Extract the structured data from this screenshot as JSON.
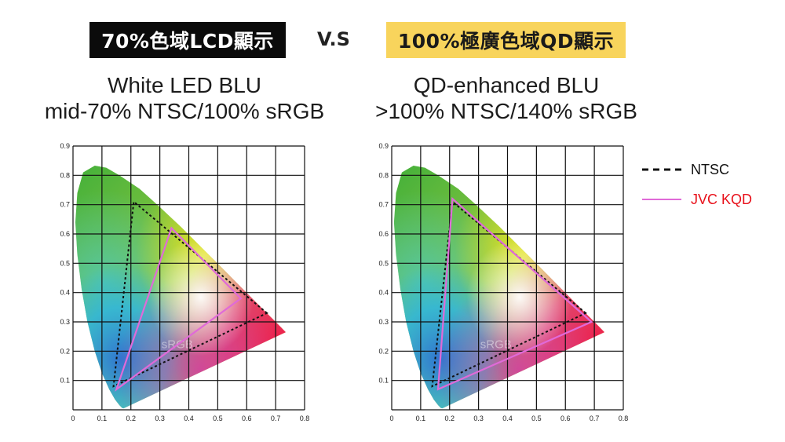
{
  "header": {
    "left_badge": "70%色域LCD顯示",
    "vs": "V.S",
    "right_badge": "100%極廣色域QD顯示"
  },
  "subtitles": {
    "left_line1": "White LED BLU",
    "left_line2": "mid-70% NTSC/100% sRGB",
    "right_line1": "QD-enhanced BLU",
    "right_line2": ">100% NTSC/140% sRGB"
  },
  "legend": [
    {
      "label": "NTSC",
      "color": "#111111",
      "style": "dashed"
    },
    {
      "label": "JVC KQD",
      "color": "#e06ad8",
      "label_color": "#e8101a",
      "style": "solid"
    }
  ],
  "colors": {
    "left_badge_bg": "#0b0b0b",
    "right_badge_bg": "#f8d45c",
    "pink": "#e06ad8"
  },
  "chart_data": [
    {
      "type": "scatter",
      "title": "White LED BLU mid-70% NTSC/100% sRGB",
      "xlabel": "",
      "ylabel": "",
      "xlim": [
        0,
        0.8
      ],
      "ylim": [
        0,
        0.9
      ],
      "x_ticks": [
        "0",
        "0.1",
        "0.2",
        "0.3",
        "0.4",
        "0.5",
        "0.6",
        "0.7",
        "0.8"
      ],
      "y_ticks": [
        "0.1",
        "0.2",
        "0.3",
        "0.4",
        "0.5",
        "0.6",
        "0.7",
        "0.8",
        "0.9"
      ],
      "grid": true,
      "watermark": "sRGB",
      "series": [
        {
          "name": "NTSC",
          "style": "dashed",
          "x": [
            0.67,
            0.21,
            0.14
          ],
          "y": [
            0.33,
            0.71,
            0.08
          ]
        },
        {
          "name": "JVC KQD",
          "style": "solid",
          "x": [
            0.58,
            0.34,
            0.15
          ],
          "y": [
            0.38,
            0.62,
            0.07
          ]
        }
      ]
    },
    {
      "type": "scatter",
      "title": "QD-enhanced BLU >100% NTSC/140% sRGB",
      "xlabel": "",
      "ylabel": "",
      "xlim": [
        0,
        0.8
      ],
      "ylim": [
        0,
        0.9
      ],
      "x_ticks": [
        "0",
        "0.1",
        "0.2",
        "0.3",
        "0.4",
        "0.5",
        "0.6",
        "0.7",
        "0.8"
      ],
      "y_ticks": [
        "0.1",
        "0.2",
        "0.3",
        "0.4",
        "0.5",
        "0.6",
        "0.7",
        "0.8",
        "0.9"
      ],
      "grid": true,
      "watermark": "sRGB",
      "series": [
        {
          "name": "NTSC",
          "style": "dashed",
          "x": [
            0.67,
            0.21,
            0.14
          ],
          "y": [
            0.33,
            0.71,
            0.08
          ]
        },
        {
          "name": "JVC KQD",
          "style": "solid",
          "x": [
            0.69,
            0.21,
            0.16
          ],
          "y": [
            0.3,
            0.72,
            0.07
          ]
        }
      ]
    }
  ]
}
